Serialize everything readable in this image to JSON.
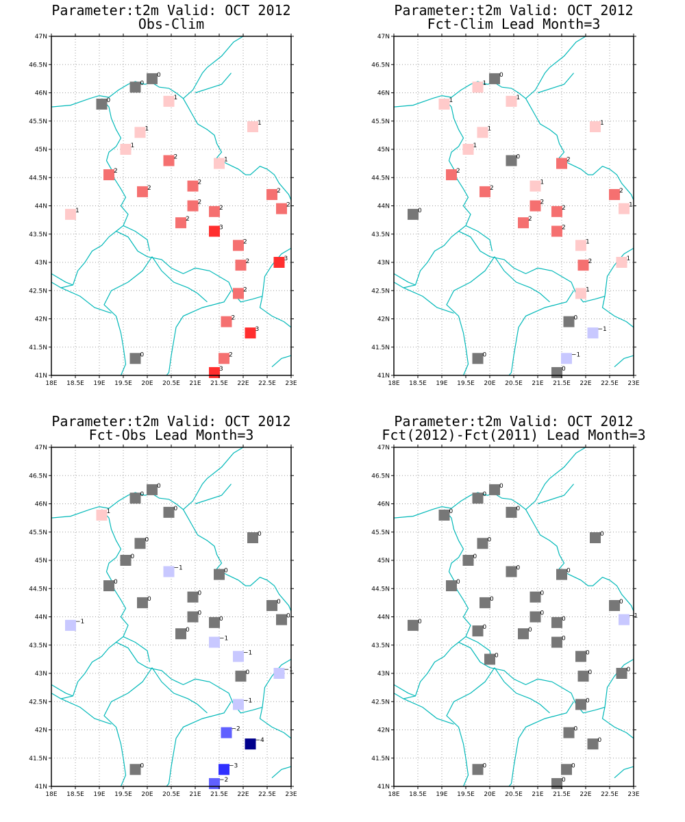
{
  "colors": {
    "coast": "#00b8b8",
    "grid": "#999999",
    "neg4": "#00008c",
    "neg3": "#3030ff",
    "neg2": "#6060ff",
    "neg1": "#c8c8ff",
    "zero": "#777777",
    "pos1": "#ffcaca",
    "pos2": "#f57070",
    "pos3": "#ff2e2e"
  },
  "axes": {
    "lon_labels": [
      "18E",
      "18.5E",
      "19E",
      "19.5E",
      "20E",
      "20.5E",
      "21E",
      "21.5E",
      "22E",
      "22.5E",
      "23E"
    ],
    "lat_labels": [
      "41N",
      "41.5N",
      "42N",
      "42.5N",
      "43N",
      "43.5N",
      "44N",
      "44.5N",
      "45N",
      "45.5N",
      "46N",
      "46.5N",
      "47N"
    ],
    "xlim": [
      18,
      23
    ],
    "ylim": [
      41,
      47
    ]
  },
  "panels": [
    {
      "title1": "Parameter:t2m Valid: OCT 2012",
      "title2": "Obs-Clim",
      "stations": [
        [
          20.1,
          46.25,
          0
        ],
        [
          19.75,
          46.1,
          0
        ],
        [
          19.05,
          45.8,
          0
        ],
        [
          20.45,
          45.85,
          1
        ],
        [
          22.2,
          45.4,
          1
        ],
        [
          19.85,
          45.3,
          1
        ],
        [
          19.55,
          45.0,
          1
        ],
        [
          20.45,
          44.8,
          2
        ],
        [
          21.5,
          44.75,
          1
        ],
        [
          19.2,
          44.55,
          2
        ],
        [
          20.95,
          44.35,
          2
        ],
        [
          19.9,
          44.25,
          2
        ],
        [
          22.6,
          44.2,
          2
        ],
        [
          20.95,
          44.0,
          2
        ],
        [
          21.4,
          43.9,
          2
        ],
        [
          18.4,
          43.85,
          1
        ],
        [
          22.8,
          43.95,
          2
        ],
        [
          20.7,
          43.7,
          2
        ],
        [
          21.4,
          43.55,
          3
        ],
        [
          21.9,
          43.3,
          2
        ],
        [
          21.95,
          42.95,
          2
        ],
        [
          22.75,
          43.0,
          3
        ],
        [
          21.9,
          42.45,
          2
        ],
        [
          21.65,
          41.95,
          2
        ],
        [
          22.15,
          41.75,
          3
        ],
        [
          19.75,
          41.3,
          0
        ],
        [
          21.6,
          41.3,
          2
        ],
        [
          21.4,
          41.05,
          3
        ]
      ]
    },
    {
      "title1": "Parameter:t2m Valid: OCT 2012",
      "title2": "Fct-Clim Lead Month=3",
      "stations": [
        [
          20.1,
          46.25,
          0
        ],
        [
          19.75,
          46.1,
          1
        ],
        [
          19.05,
          45.8,
          1
        ],
        [
          20.45,
          45.85,
          1
        ],
        [
          22.2,
          45.4,
          1
        ],
        [
          19.85,
          45.3,
          1
        ],
        [
          19.55,
          45.0,
          1
        ],
        [
          20.45,
          44.8,
          0
        ],
        [
          21.5,
          44.75,
          2
        ],
        [
          19.2,
          44.55,
          2
        ],
        [
          20.95,
          44.35,
          1
        ],
        [
          19.9,
          44.25,
          2
        ],
        [
          22.6,
          44.2,
          2
        ],
        [
          20.95,
          44.0,
          2
        ],
        [
          21.4,
          43.9,
          2
        ],
        [
          18.4,
          43.85,
          0
        ],
        [
          22.8,
          43.95,
          1
        ],
        [
          20.7,
          43.7,
          2
        ],
        [
          21.4,
          43.55,
          2
        ],
        [
          21.9,
          43.3,
          1
        ],
        [
          21.95,
          42.95,
          2
        ],
        [
          22.75,
          43.0,
          1
        ],
        [
          21.9,
          42.45,
          1
        ],
        [
          21.65,
          41.95,
          0
        ],
        [
          22.15,
          41.75,
          -1
        ],
        [
          19.75,
          41.3,
          0
        ],
        [
          21.6,
          41.3,
          -1
        ],
        [
          21.4,
          41.05,
          0
        ]
      ]
    },
    {
      "title1": "Parameter:t2m Valid: OCT 2012",
      "title2": "Fct-Obs Lead Month=3",
      "stations": [
        [
          20.1,
          46.25,
          0
        ],
        [
          19.75,
          46.1,
          0
        ],
        [
          19.05,
          45.8,
          1
        ],
        [
          20.45,
          45.85,
          0
        ],
        [
          22.2,
          45.4,
          0
        ],
        [
          19.85,
          45.3,
          0
        ],
        [
          19.55,
          45.0,
          0
        ],
        [
          20.45,
          44.8,
          -1
        ],
        [
          21.5,
          44.75,
          0
        ],
        [
          19.2,
          44.55,
          0
        ],
        [
          20.95,
          44.35,
          0
        ],
        [
          19.9,
          44.25,
          0
        ],
        [
          22.6,
          44.2,
          0
        ],
        [
          20.95,
          44.0,
          0
        ],
        [
          21.4,
          43.9,
          0
        ],
        [
          18.4,
          43.85,
          -1
        ],
        [
          22.8,
          43.95,
          0
        ],
        [
          20.7,
          43.7,
          0
        ],
        [
          21.4,
          43.55,
          -1
        ],
        [
          21.9,
          43.3,
          -1
        ],
        [
          21.95,
          42.95,
          0
        ],
        [
          22.75,
          43.0,
          -1
        ],
        [
          21.9,
          42.45,
          -1
        ],
        [
          21.65,
          41.95,
          -2
        ],
        [
          22.15,
          41.75,
          -4
        ],
        [
          19.75,
          41.3,
          0
        ],
        [
          21.6,
          41.3,
          -3
        ],
        [
          21.4,
          41.05,
          -2
        ]
      ]
    },
    {
      "title1": "Parameter:t2m Valid: OCT 2012",
      "title2": "Fct(2012)-Fct(2011) Lead Month=3",
      "stations": [
        [
          20.1,
          46.25,
          0
        ],
        [
          19.75,
          46.1,
          0
        ],
        [
          19.05,
          45.8,
          0
        ],
        [
          20.45,
          45.85,
          0
        ],
        [
          22.2,
          45.4,
          0
        ],
        [
          19.85,
          45.3,
          0
        ],
        [
          19.55,
          45.0,
          0
        ],
        [
          20.45,
          44.8,
          0
        ],
        [
          21.5,
          44.75,
          0
        ],
        [
          19.2,
          44.55,
          0
        ],
        [
          20.95,
          44.35,
          0
        ],
        [
          19.9,
          44.25,
          0
        ],
        [
          22.6,
          44.2,
          0
        ],
        [
          20.95,
          44.0,
          0
        ],
        [
          21.4,
          43.9,
          0
        ],
        [
          18.4,
          43.85,
          0
        ],
        [
          22.8,
          43.95,
          -1
        ],
        [
          20.7,
          43.7,
          0
        ],
        [
          21.4,
          43.55,
          0
        ],
        [
          21.9,
          43.3,
          0
        ],
        [
          21.95,
          42.95,
          0
        ],
        [
          22.75,
          43.0,
          0
        ],
        [
          21.9,
          42.45,
          0
        ],
        [
          21.65,
          41.95,
          0
        ],
        [
          22.15,
          41.75,
          0
        ],
        [
          19.75,
          41.3,
          0
        ],
        [
          21.6,
          41.3,
          0
        ],
        [
          21.4,
          41.05,
          0
        ],
        [
          20.0,
          43.25,
          0
        ],
        [
          19.75,
          43.75,
          0
        ]
      ]
    }
  ]
}
